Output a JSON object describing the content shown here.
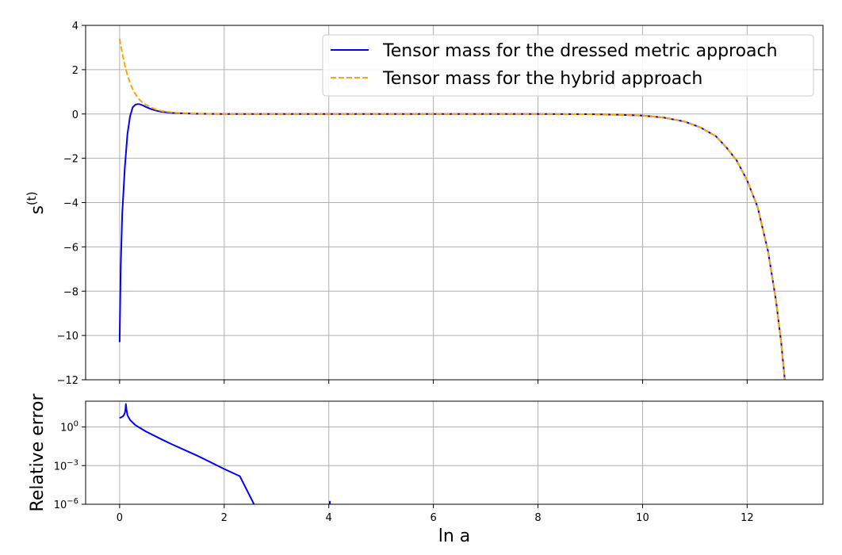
{
  "chart_data": [
    {
      "type": "line",
      "title": "",
      "xlabel": "",
      "ylabel": "s",
      "ylabel_superscript": "(t)",
      "xlim": [
        -0.65,
        13.45
      ],
      "ylim": [
        -12,
        4
      ],
      "xticks": [
        0,
        2,
        4,
        6,
        8,
        10,
        12
      ],
      "xtick_labels": [
        "0",
        "2",
        "4",
        "6",
        "8",
        "10",
        "12"
      ],
      "yticks": [
        4,
        2,
        0,
        -2,
        -4,
        -6,
        -8,
        -10,
        -12
      ],
      "ytick_labels": [
        "4",
        "2",
        "0",
        "−2",
        "−4",
        "−6",
        "−8",
        "−10",
        "−12"
      ],
      "grid": true,
      "legend_position": "top-right",
      "series": [
        {
          "name": "Tensor mass for the dressed metric approach",
          "color": "#0000ff",
          "style": "solid",
          "x": [
            0.0,
            0.02,
            0.05,
            0.1,
            0.15,
            0.2,
            0.25,
            0.3,
            0.35,
            0.4,
            0.45,
            0.5,
            0.6,
            0.7,
            0.8,
            1.0,
            1.2,
            1.5,
            2.0,
            3.0,
            4.0,
            5.0,
            6.0,
            7.0,
            8.0,
            9.0,
            9.5,
            10.0,
            10.4,
            10.8,
            11.1,
            11.4,
            11.6,
            11.8,
            12.0,
            12.2,
            12.4,
            12.55,
            12.65,
            12.72
          ],
          "y": [
            -10.3,
            -7.0,
            -4.5,
            -2.4,
            -0.9,
            -0.1,
            0.3,
            0.42,
            0.45,
            0.43,
            0.38,
            0.32,
            0.22,
            0.15,
            0.1,
            0.05,
            0.03,
            0.01,
            0.0,
            0.0,
            0.0,
            0.0,
            0.0,
            0.0,
            0.0,
            -0.01,
            -0.03,
            -0.07,
            -0.16,
            -0.34,
            -0.6,
            -1.0,
            -1.5,
            -2.1,
            -3.0,
            -4.2,
            -6.2,
            -8.4,
            -10.3,
            -12.0
          ]
        },
        {
          "name": "Tensor mass for the hybrid approach",
          "color": "#ffa500",
          "style": "dashed",
          "x": [
            0.0,
            0.05,
            0.1,
            0.15,
            0.2,
            0.25,
            0.3,
            0.35,
            0.4,
            0.45,
            0.5,
            0.6,
            0.7,
            0.8,
            1.0,
            1.2,
            1.5,
            2.0,
            3.0,
            4.0,
            5.0,
            6.0,
            7.0,
            8.0,
            9.0,
            9.5,
            10.0,
            10.4,
            10.8,
            11.1,
            11.4,
            11.6,
            11.8,
            12.0,
            12.2,
            12.4,
            12.55,
            12.65,
            12.72
          ],
          "y": [
            3.4,
            2.75,
            2.2,
            1.75,
            1.4,
            1.12,
            0.9,
            0.72,
            0.6,
            0.5,
            0.42,
            0.3,
            0.2,
            0.14,
            0.07,
            0.04,
            0.015,
            0.0,
            0.0,
            0.0,
            0.0,
            0.0,
            0.0,
            0.0,
            -0.01,
            -0.03,
            -0.07,
            -0.16,
            -0.34,
            -0.6,
            -1.0,
            -1.5,
            -2.1,
            -3.0,
            -4.2,
            -6.2,
            -8.4,
            -10.3,
            -12.0
          ]
        }
      ]
    },
    {
      "type": "line",
      "title": "",
      "xlabel": "ln a",
      "ylabel": "Relative error",
      "xlim": [
        -0.65,
        13.45
      ],
      "ylim": [
        1e-06,
        100
      ],
      "y_scale": "log",
      "xticks": [
        0,
        2,
        4,
        6,
        8,
        10,
        12
      ],
      "xtick_labels": [
        "0",
        "2",
        "4",
        "6",
        "8",
        "10",
        "12"
      ],
      "yticks": [
        1,
        0.001,
        1e-06
      ],
      "ytick_labels": [
        {
          "base": "10",
          "exp": "0"
        },
        {
          "base": "10",
          "exp": "−3"
        },
        {
          "base": "10",
          "exp": "−6"
        }
      ],
      "grid": true,
      "series": [
        {
          "color": "#0000ff",
          "style": "solid",
          "x": [
            0.0,
            0.03,
            0.06,
            0.08,
            0.1,
            0.11,
            0.12,
            0.13,
            0.15,
            0.2,
            0.3,
            0.5,
            0.8,
            1.0,
            1.5,
            2.0,
            2.3,
            2.57
          ],
          "y": [
            5,
            5.6,
            6.5,
            8,
            12,
            20,
            60,
            25,
            8,
            3.5,
            1.4,
            0.45,
            0.11,
            0.045,
            0.0055,
            0.00055,
            0.00015,
            1e-06
          ]
        },
        {
          "color": "#0000ff",
          "style": "solid",
          "x": [
            4.02,
            4.02
          ],
          "y": [
            1e-06,
            1.8e-06
          ]
        }
      ]
    }
  ]
}
